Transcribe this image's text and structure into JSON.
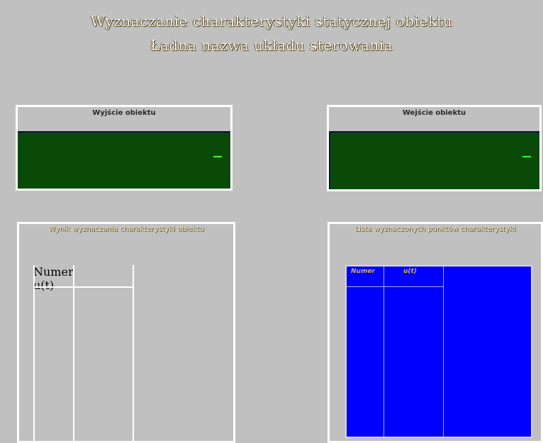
{
  "page": {
    "title_line1": "Wyznaczanie charakterystyki statycznej obiektu",
    "title_line2": "Ładna nazwa układu sterowania"
  },
  "panels": {
    "left_indicator": {
      "label": "Wyjście obiektu",
      "value": "–"
    },
    "right_indicator": {
      "label": "Wejście obiektu",
      "value": "–"
    },
    "left_table": {
      "title": "Wynik wyznaczania charakterystyki obiektu",
      "columns": [
        "Numer",
        "u(t)"
      ]
    },
    "right_table": {
      "title": "Lista wyznaczonych punktów charakterystyki",
      "columns": [
        "Numer",
        "u(t)"
      ]
    }
  },
  "colors": {
    "background": "#c0c0c0",
    "indicator_body": "#0a4a08",
    "indicator_value": "#36ff36",
    "table_blue": "#0000ff"
  }
}
